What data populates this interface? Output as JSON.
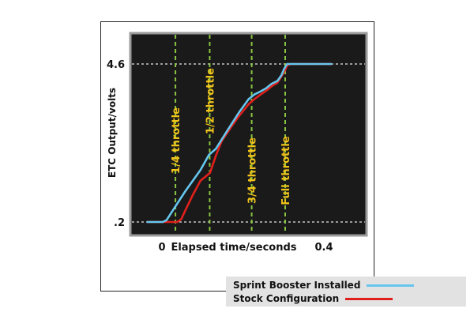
{
  "chart_data": {
    "type": "line",
    "ylabel": "ETC Output/volts",
    "xlabel": "Elapsed time/seconds",
    "x_ticks": [
      "0",
      "0.4"
    ],
    "y_ticks": [
      ".2",
      "4.6"
    ],
    "xlim": [
      0,
      0.4
    ],
    "ylim": [
      0.2,
      4.6
    ],
    "grid": false,
    "colors": {
      "background": "#1a1a1a",
      "sprint": "#66c6ee",
      "stock": "#e0201c",
      "markers": "#88c540",
      "marker_text": "#f0c419"
    },
    "markers": [
      {
        "label": "1/4 throttle",
        "x": 0.035
      },
      {
        "label": "1/2 throttle",
        "x": 0.124
      },
      {
        "label": "3/4 throttle",
        "x": 0.233
      },
      {
        "label": "Full throttle",
        "x": 0.32
      }
    ],
    "series": [
      {
        "name": "Sprint Booster Installed",
        "x": [
          -0.038,
          0.002,
          0.012,
          0.03,
          0.06,
          0.1,
          0.122,
          0.14,
          0.17,
          0.2,
          0.225,
          0.24,
          0.255,
          0.27,
          0.285,
          0.3,
          0.31,
          0.318,
          0.325,
          0.334,
          0.34,
          0.35,
          0.4,
          0.439
        ],
        "y": [
          0.2,
          0.2,
          0.25,
          0.55,
          1.05,
          1.65,
          2.07,
          2.24,
          2.75,
          3.25,
          3.62,
          3.75,
          3.83,
          3.92,
          4.05,
          4.13,
          4.28,
          4.48,
          4.6,
          4.6,
          4.6,
          4.6,
          4.6,
          4.6
        ]
      },
      {
        "name": "Stock Configuration",
        "x": [
          -0.038,
          0.04,
          0.05,
          0.062,
          0.08,
          0.1,
          0.125,
          0.14,
          0.155,
          0.18,
          0.2,
          0.225,
          0.24,
          0.255,
          0.27,
          0.285,
          0.3,
          0.31,
          0.32,
          0.325,
          0.334,
          0.35,
          0.4,
          0.439
        ],
        "y": [
          0.2,
          0.2,
          0.28,
          0.55,
          0.95,
          1.35,
          1.57,
          2.05,
          2.45,
          2.85,
          3.15,
          3.48,
          3.62,
          3.74,
          3.85,
          3.98,
          4.08,
          4.25,
          4.43,
          4.56,
          4.6,
          4.6,
          4.6,
          4.6
        ]
      }
    ]
  },
  "legend": {
    "items": [
      {
        "label": "Sprint Booster Installed",
        "color": "#66c6ee"
      },
      {
        "label": "Stock Configuration",
        "color": "#e0201c"
      }
    ]
  }
}
